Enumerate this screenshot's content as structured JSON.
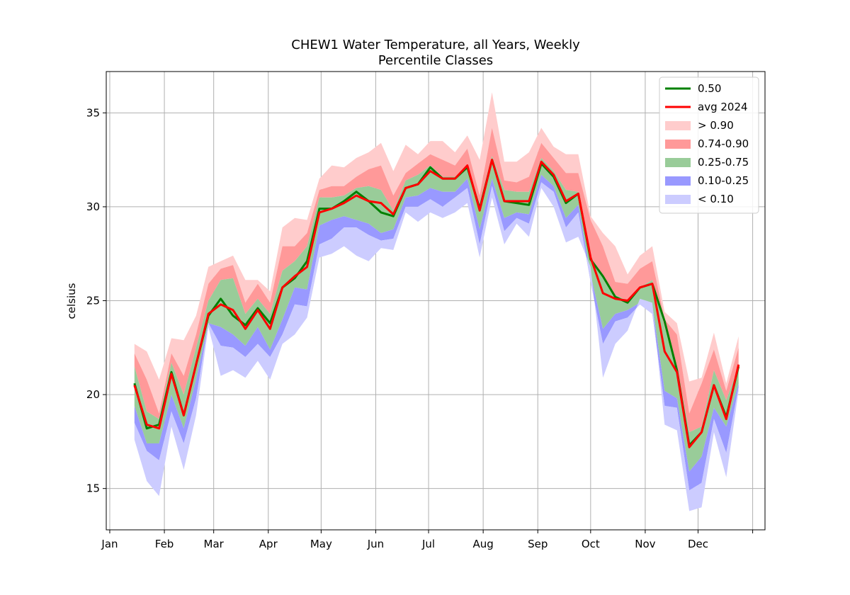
{
  "chart_data": {
    "type": "area",
    "title": [
      "CHEW1 Water Temperature, all Years, Weekly",
      "Percentile Classes"
    ],
    "xlabel": "",
    "ylabel": "celsius",
    "x_tick_labels": [
      "Jan",
      "Feb",
      "Mar",
      "Apr",
      "May",
      "Jun",
      "Jul",
      "Aug",
      "Sep",
      "Oct",
      "Nov",
      "Dec",
      ""
    ],
    "x_ticks_day_of_year": [
      1,
      32,
      60,
      91,
      121,
      152,
      182,
      213,
      244,
      274,
      305,
      335,
      366
    ],
    "xlim_day_of_year": [
      -1,
      373
    ],
    "ylim": [
      12.8,
      37.2
    ],
    "y_ticks": [
      15,
      20,
      25,
      30,
      35
    ],
    "grid": true,
    "legend_position": "top-right",
    "x_day_of_year": [
      15,
      22,
      29,
      36,
      43,
      50,
      57,
      64,
      71,
      78,
      85,
      92,
      99,
      106,
      113,
      120,
      127,
      134,
      141,
      148,
      155,
      162,
      169,
      176,
      183,
      190,
      197,
      204,
      211,
      218,
      225,
      232,
      239,
      246,
      253,
      260,
      267,
      274,
      281,
      288,
      295,
      302,
      309,
      316,
      323,
      330,
      337,
      344,
      351,
      358
    ],
    "percentiles": {
      "p00": [
        17.6,
        15.4,
        14.6,
        18.3,
        16.0,
        18.9,
        23.6,
        21.0,
        21.3,
        20.9,
        21.8,
        20.8,
        22.7,
        23.2,
        24.1,
        27.3,
        27.5,
        27.9,
        27.4,
        27.1,
        27.8,
        27.7,
        29.7,
        29.2,
        29.7,
        29.4,
        29.7,
        30.2,
        27.3,
        30.5,
        28.0,
        29.1,
        28.4,
        31.0,
        30.0,
        28.1,
        28.4,
        26.8,
        20.9,
        22.7,
        23.4,
        25.1,
        24.9,
        18.4,
        18.1,
        13.8,
        14.0,
        18.0,
        15.6,
        20.2
      ],
      "p10": [
        18.5,
        17.0,
        16.5,
        19.1,
        17.4,
        19.8,
        23.8,
        22.6,
        22.5,
        22.0,
        22.7,
        22.0,
        23.2,
        24.8,
        24.7,
        28.0,
        28.3,
        28.9,
        28.9,
        28.5,
        28.2,
        28.3,
        30.0,
        30.0,
        30.4,
        30.0,
        30.5,
        31.0,
        28.0,
        31.1,
        28.7,
        29.4,
        29.1,
        31.3,
        30.8,
        28.9,
        29.7,
        26.0,
        22.7,
        23.9,
        24.1,
        24.8,
        24.3,
        19.4,
        19.3,
        14.9,
        15.3,
        18.7,
        16.9,
        20.4
      ],
      "p25": [
        19.4,
        17.4,
        17.4,
        20.0,
        18.2,
        20.8,
        23.8,
        23.6,
        23.2,
        22.6,
        23.6,
        22.4,
        24.0,
        25.7,
        25.6,
        29.0,
        29.3,
        29.5,
        29.3,
        29.1,
        28.6,
        28.8,
        30.5,
        30.6,
        31.0,
        30.8,
        30.8,
        31.5,
        28.8,
        31.5,
        29.4,
        29.7,
        29.6,
        31.7,
        31.1,
        29.4,
        30.1,
        26.4,
        23.5,
        24.3,
        24.5,
        24.9,
        24.8,
        20.2,
        19.8,
        15.9,
        16.7,
        19.3,
        18.3,
        20.6
      ],
      "p75": [
        21.5,
        19.1,
        18.7,
        21.7,
        20.0,
        22.5,
        25.0,
        26.1,
        26.2,
        24.3,
        25.1,
        24.3,
        26.6,
        27.1,
        27.9,
        30.5,
        30.5,
        30.6,
        31.0,
        31.1,
        30.9,
        29.8,
        31.4,
        31.7,
        32.2,
        31.6,
        31.6,
        32.2,
        29.9,
        32.7,
        30.9,
        30.8,
        30.8,
        32.6,
        31.9,
        30.9,
        30.8,
        27.4,
        26.2,
        25.3,
        25.0,
        25.7,
        26.1,
        23.6,
        21.4,
        18.0,
        18.3,
        21.3,
        19.7,
        21.5
      ],
      "p90": [
        22.2,
        20.8,
        19.0,
        22.2,
        21.0,
        23.2,
        25.9,
        26.7,
        26.9,
        24.9,
        25.9,
        24.9,
        27.9,
        27.9,
        28.6,
        30.9,
        31.1,
        31.1,
        31.6,
        32.0,
        32.2,
        30.6,
        31.8,
        32.3,
        32.8,
        32.5,
        32.2,
        33.1,
        30.6,
        34.2,
        31.4,
        31.3,
        31.6,
        33.4,
        32.6,
        31.8,
        31.8,
        29.3,
        27.9,
        26.0,
        25.9,
        26.7,
        27.1,
        24.0,
        23.2,
        19.0,
        20.6,
        22.4,
        20.2,
        22.5
      ],
      "p100": [
        22.7,
        22.3,
        20.8,
        23.0,
        22.9,
        24.2,
        26.8,
        27.1,
        27.4,
        26.1,
        26.1,
        25.5,
        28.9,
        29.4,
        29.3,
        31.5,
        32.2,
        32.1,
        32.6,
        32.9,
        33.4,
        31.9,
        33.3,
        32.8,
        33.5,
        33.5,
        32.9,
        33.8,
        32.5,
        36.1,
        32.4,
        32.4,
        32.9,
        34.2,
        33.2,
        32.8,
        32.8,
        29.5,
        28.6,
        27.9,
        26.4,
        27.4,
        27.9,
        24.4,
        23.8,
        20.7,
        20.9,
        23.3,
        20.6,
        23.1
      ]
    },
    "series": [
      {
        "name": "0.50",
        "color": "#008000",
        "values": [
          20.6,
          18.2,
          18.4,
          21.2,
          18.9,
          21.6,
          24.2,
          25.1,
          24.2,
          23.7,
          24.6,
          23.8,
          25.7,
          26.2,
          27.1,
          29.9,
          29.9,
          30.3,
          30.8,
          30.3,
          29.7,
          29.5,
          31.0,
          31.2,
          32.1,
          31.5,
          31.5,
          32.1,
          29.9,
          32.5,
          30.3,
          30.2,
          30.1,
          32.3,
          31.6,
          30.2,
          30.7,
          27.2,
          26.3,
          25.2,
          24.9,
          25.7,
          25.9,
          23.9,
          21.3,
          17.3,
          18.0,
          20.5,
          18.8,
          21.5
        ]
      },
      {
        "name": "avg 2024",
        "color": "#ff0000",
        "values": [
          20.5,
          18.4,
          18.2,
          21.1,
          18.9,
          21.6,
          24.3,
          24.8,
          24.5,
          23.5,
          24.5,
          23.5,
          25.7,
          26.3,
          26.8,
          29.7,
          29.9,
          30.2,
          30.6,
          30.3,
          30.2,
          29.6,
          31.0,
          31.2,
          31.9,
          31.5,
          31.5,
          32.2,
          29.8,
          32.5,
          30.3,
          30.3,
          30.3,
          32.4,
          31.7,
          30.3,
          30.7,
          27.3,
          25.4,
          25.1,
          25.0,
          25.7,
          25.9,
          22.3,
          21.2,
          17.2,
          18.0,
          20.5,
          18.7,
          21.6
        ]
      }
    ],
    "bands": [
      {
        "name": "> 0.90",
        "color": "#ffcccc",
        "lower": "p90",
        "upper": "p100"
      },
      {
        "name": "0.74-0.90",
        "color": "#ff9999",
        "lower": "p75",
        "upper": "p90"
      },
      {
        "name": "0.25-0.75",
        "color": "#99cc99",
        "lower": "p25",
        "upper": "p75"
      },
      {
        "name": "0.10-0.25",
        "color": "#9999ff",
        "lower": "p10",
        "upper": "p25"
      },
      {
        "name": "< 0.10",
        "color": "#ccccff",
        "lower": "p00",
        "upper": "p10"
      }
    ],
    "legend": [
      {
        "label": "0.50",
        "kind": "line",
        "color": "#008000"
      },
      {
        "label": "avg 2024",
        "kind": "line",
        "color": "#ff0000"
      },
      {
        "label": "> 0.90",
        "kind": "patch",
        "color": "#ffcccc"
      },
      {
        "label": "0.74-0.90",
        "kind": "patch",
        "color": "#ff9999"
      },
      {
        "label": "0.25-0.75",
        "kind": "patch",
        "color": "#99cc99"
      },
      {
        "label": "0.10-0.25",
        "kind": "patch",
        "color": "#9999ff"
      },
      {
        "label": "< 0.10",
        "kind": "patch",
        "color": "#ccccff"
      }
    ]
  }
}
